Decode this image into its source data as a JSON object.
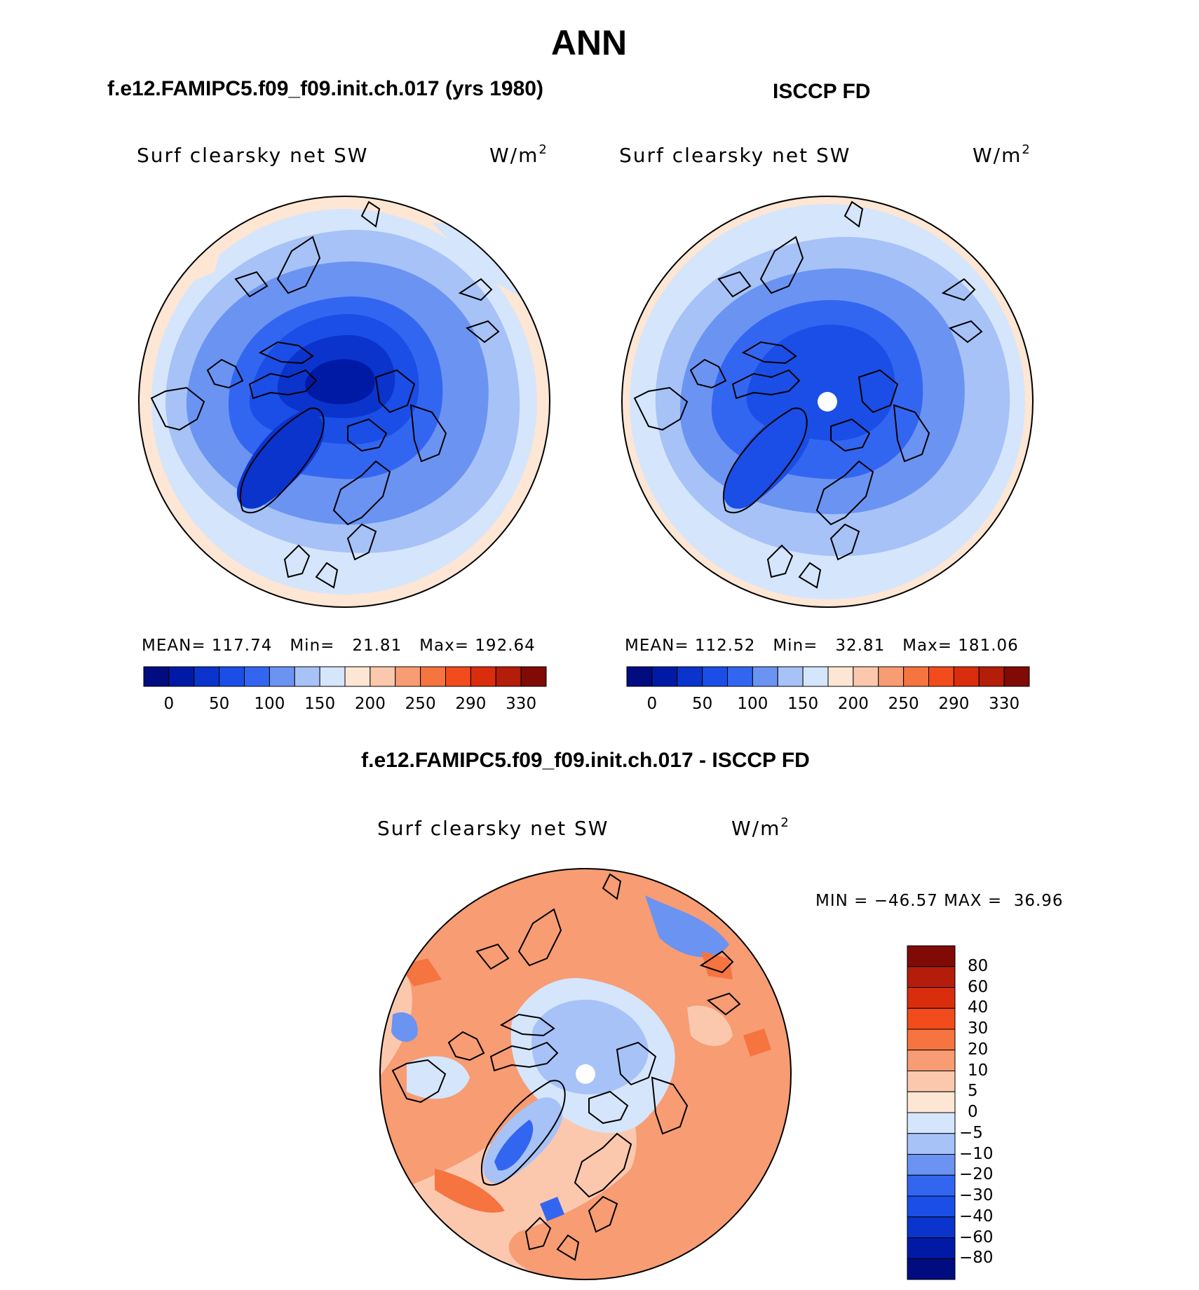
{
  "figure": {
    "season": "ANN",
    "title_left": "f.e12.FAMIPC5.f09_f09.init.ch.017 (yrs 1980)",
    "title_right": "ISCCP FD",
    "title_diff": "f.e12.FAMIPC5.f09_f09.init.ch.017 - ISCCP FD"
  },
  "chart_data": [
    {
      "type": "heatmap",
      "projection": "north-polar-stereographic",
      "title": "f.e12.FAMIPC5.f09_f09.init.ch.017 (yrs 1980)",
      "variable": "Surf clearsky net SW",
      "units": "W/m",
      "units_sup": "2",
      "stats": {
        "mean_label": "MEAN=",
        "mean": "117.74",
        "min_label": "Min=",
        "min": "21.81",
        "max_label": "Max=",
        "max": "192.64"
      },
      "levels": [
        "0",
        "50",
        "100",
        "150",
        "200",
        "250",
        "290",
        "330"
      ],
      "colors": [
        "#000c80",
        "#001aa6",
        "#0a34cc",
        "#1a4ee6",
        "#3366f0",
        "#6b93f2",
        "#a6c2f7",
        "#d5e5fb",
        "#fde6d4",
        "#fbc8ae",
        "#f79c73",
        "#f5743f",
        "#f24c1c",
        "#d92d0d",
        "#b31d0a",
        "#800a05"
      ]
    },
    {
      "type": "heatmap",
      "projection": "north-polar-stereographic",
      "title": "ISCCP FD",
      "variable": "Surf clearsky net SW",
      "units": "W/m",
      "units_sup": "2",
      "stats": {
        "mean_label": "MEAN=",
        "mean": "112.52",
        "min_label": "Min=",
        "min": "32.81",
        "max_label": "Max=",
        "max": "181.06"
      },
      "levels": [
        "0",
        "50",
        "100",
        "150",
        "200",
        "250",
        "290",
        "330"
      ],
      "colors": [
        "#000c80",
        "#001aa6",
        "#0a34cc",
        "#1a4ee6",
        "#3366f0",
        "#6b93f2",
        "#a6c2f7",
        "#d5e5fb",
        "#fde6d4",
        "#fbc8ae",
        "#f79c73",
        "#f5743f",
        "#f24c1c",
        "#d92d0d",
        "#b31d0a",
        "#800a05"
      ]
    },
    {
      "type": "heatmap",
      "projection": "north-polar-stereographic",
      "title": "f.e12.FAMIPC5.f09_f09.init.ch.017 - ISCCP FD",
      "variable": "Surf clearsky net SW",
      "units": "W/m",
      "units_sup": "2",
      "stats": {
        "min_label": "MIN =",
        "min": "−46.57",
        "max_label": "MAX =",
        "max": "36.96"
      },
      "levels": [
        "80",
        "60",
        "40",
        "30",
        "20",
        "10",
        "5",
        "0",
        "−5",
        "−10",
        "−20",
        "−30",
        "−40",
        "−60",
        "−80"
      ],
      "colors": [
        "#800a05",
        "#b31d0a",
        "#d92d0d",
        "#f24c1c",
        "#f5743f",
        "#f79c73",
        "#fbc8ae",
        "#fde6d4",
        "#d5e5fb",
        "#a6c2f7",
        "#6b93f2",
        "#3366f0",
        "#1a4ee6",
        "#0a34cc",
        "#001aa6",
        "#000c80"
      ]
    }
  ]
}
